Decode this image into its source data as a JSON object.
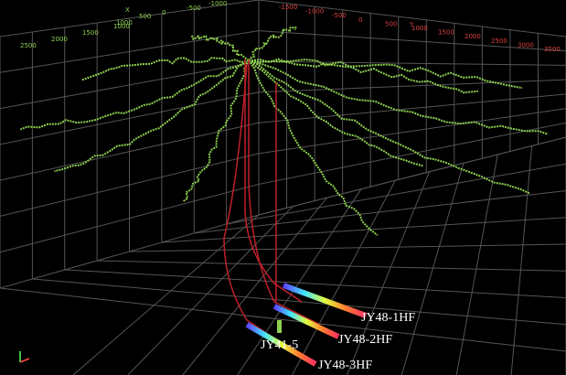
{
  "axes": {
    "x": {
      "name": "X",
      "ticks": [
        "1000",
        "500",
        "0",
        "-500",
        "-1000"
      ]
    },
    "y": {
      "name": "Y",
      "ticks": [
        "-1500",
        "-1000",
        "-500",
        "0",
        "500",
        "1000",
        "1500",
        "2000",
        "2500",
        "3000",
        "3500"
      ]
    },
    "z": {
      "ticks": [
        "2500",
        "2000",
        "1500",
        "1000"
      ]
    }
  },
  "wells": [
    {
      "label": "JY48-1HF"
    },
    {
      "label": "JY48-2HF"
    },
    {
      "label": "JY41-5"
    },
    {
      "label": "JY48-3HF"
    }
  ]
}
